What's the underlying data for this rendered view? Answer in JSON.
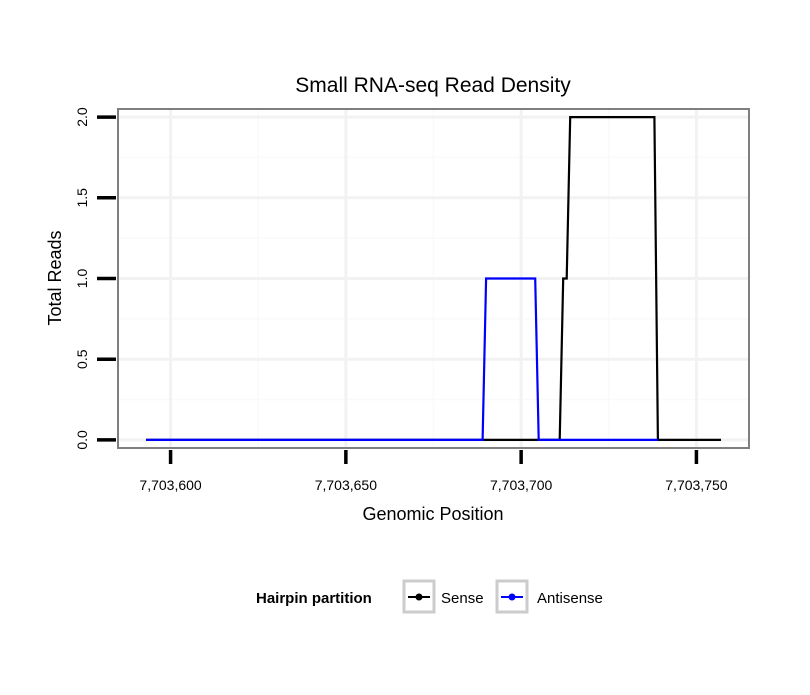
{
  "chart_data": {
    "type": "line",
    "title": "Small RNA-seq Read Density",
    "xlabel": "Genomic Position",
    "ylabel": "Total Reads",
    "xlim": [
      7703585,
      7703765
    ],
    "ylim": [
      -0.05,
      2.05
    ],
    "x_ticks": [
      7703600,
      7703650,
      7703700,
      7703750
    ],
    "x_tick_labels": [
      "7,703,600",
      "7,703,650",
      "7,703,700",
      "7,703,750"
    ],
    "y_ticks": [
      0,
      0.5,
      1,
      1.5,
      2
    ],
    "y_tick_labels": [
      "0.0",
      "0.5",
      "1.0",
      "1.5",
      "2.0"
    ],
    "grid": true,
    "legend": {
      "title": "Hairpin partition",
      "position": "bottom",
      "entries": [
        "Sense",
        "Antisense"
      ]
    },
    "series": [
      {
        "name": "Sense",
        "color": "#000000",
        "x": [
          7703593,
          7703711,
          7703712,
          7703713,
          7703714,
          7703738,
          7703739,
          7703757
        ],
        "y": [
          0,
          0,
          1,
          1,
          2,
          2,
          0,
          0
        ]
      },
      {
        "name": "Antisense",
        "color": "#0000ff",
        "x": [
          7703593,
          7703689,
          7703690,
          7703704,
          7703705,
          7703738,
          7703739
        ],
        "y": [
          0,
          0,
          1,
          1,
          0,
          0,
          0
        ]
      }
    ]
  }
}
